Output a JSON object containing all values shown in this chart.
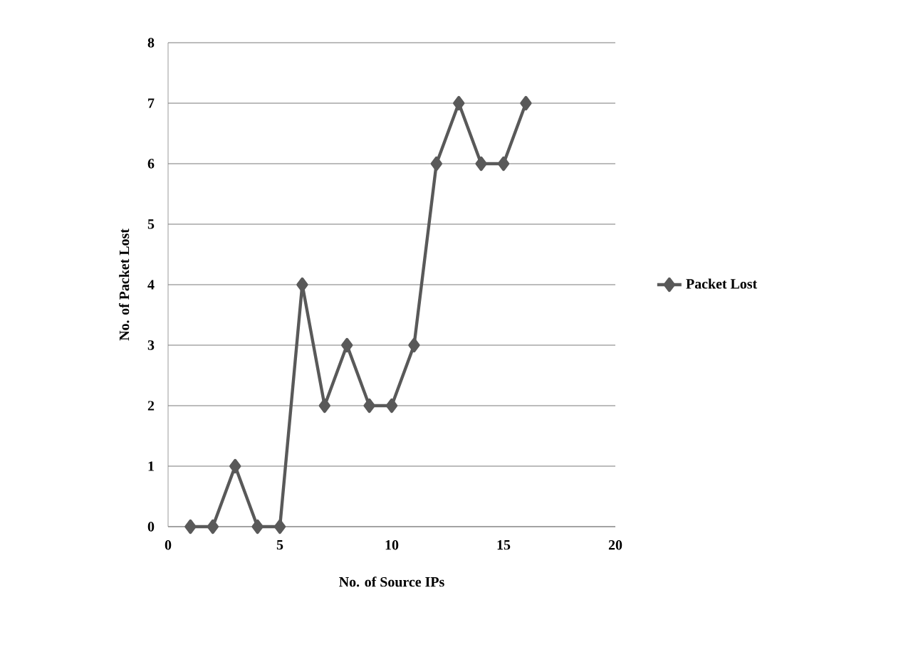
{
  "chart_data": {
    "type": "line",
    "xlabel": "No. of Source IPs",
    "ylabel": "No. of Packet Lost",
    "x": [
      1,
      2,
      3,
      4,
      5,
      6,
      7,
      8,
      9,
      10,
      11,
      12,
      13,
      14,
      15,
      16
    ],
    "series": [
      {
        "name": "Packet Lost",
        "color": "#595959",
        "values": [
          0,
          0,
          1,
          0,
          0,
          4,
          2,
          3,
          2,
          2,
          3,
          6,
          7,
          6,
          6,
          7
        ]
      }
    ],
    "xlim": [
      0,
      20
    ],
    "xticks": [
      0,
      5,
      10,
      15,
      20
    ],
    "ylim": [
      0,
      8
    ],
    "yticks": [
      0,
      1,
      2,
      3,
      4,
      5,
      6,
      7,
      8
    ],
    "grid": "y",
    "legend": "right",
    "marker": "diamond",
    "line_style": "solid"
  }
}
